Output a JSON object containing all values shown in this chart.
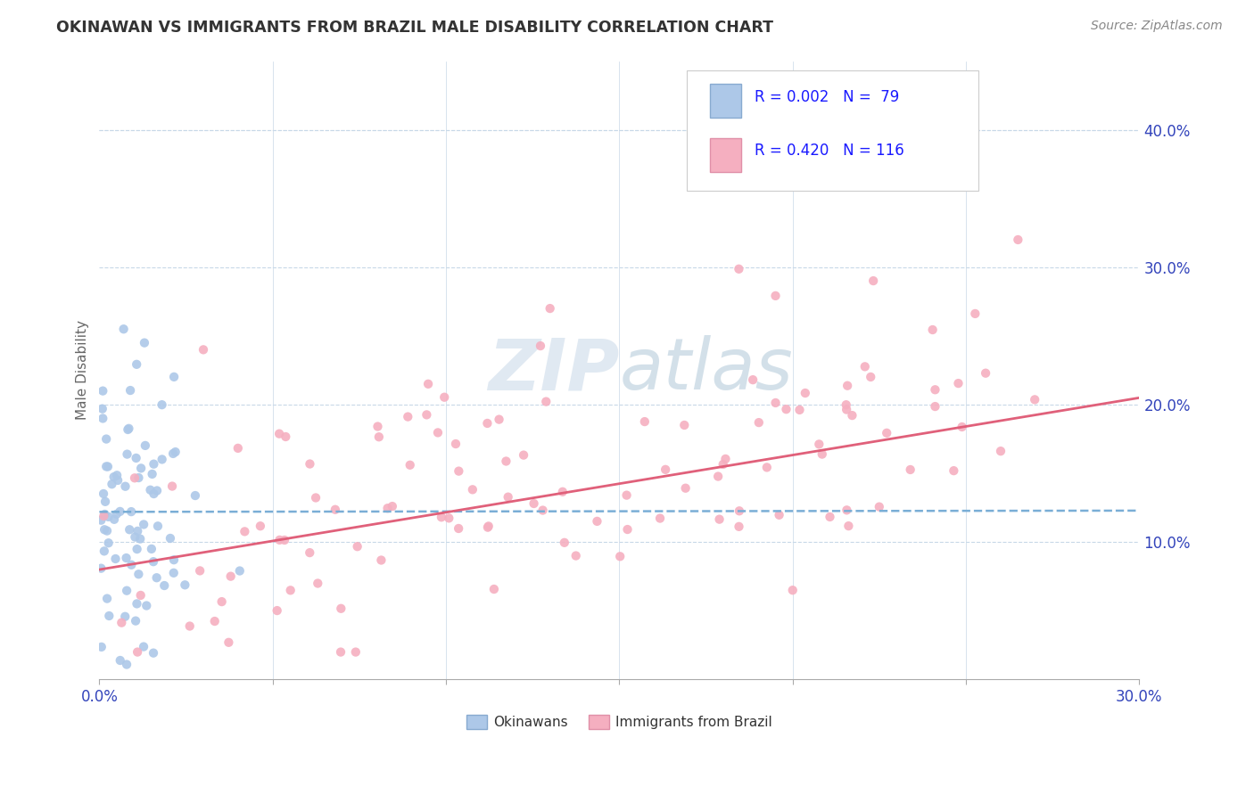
{
  "title": "OKINAWAN VS IMMIGRANTS FROM BRAZIL MALE DISABILITY CORRELATION CHART",
  "source": "Source: ZipAtlas.com",
  "ylabel": "Male Disability",
  "xlim": [
    0,
    0.3
  ],
  "ylim": [
    0,
    0.45
  ],
  "xticks": [
    0.0,
    0.05,
    0.1,
    0.15,
    0.2,
    0.25,
    0.3
  ],
  "yticks_right": [
    0.1,
    0.2,
    0.3,
    0.4
  ],
  "ytick_labels_right": [
    "10.0%",
    "20.0%",
    "30.0%",
    "40.0%"
  ],
  "series_okinawan": {
    "name": "Okinawans",
    "R": 0.002,
    "N": 79,
    "scatter_color": "#adc8e8",
    "line_color": "#7aaed6",
    "line_style": "--"
  },
  "series_brazil": {
    "name": "Immigrants from Brazil",
    "R": 0.42,
    "N": 116,
    "scatter_color": "#f5afc0",
    "line_color": "#e0607a",
    "line_style": "-"
  },
  "legend_box_color": "#adc8e8",
  "legend_box_color2": "#f5afc0",
  "legend_text_color": "#1a1aff",
  "legend_text_color_dark": "#222222",
  "watermark_zip_color": "#c8d8e8",
  "watermark_atlas_color": "#b0c8d8",
  "background_color": "#ffffff",
  "grid_color": "#c8d8e8",
  "title_color": "#333333",
  "source_color": "#888888",
  "axis_label_color": "#3344bb",
  "ylabel_color": "#666666"
}
